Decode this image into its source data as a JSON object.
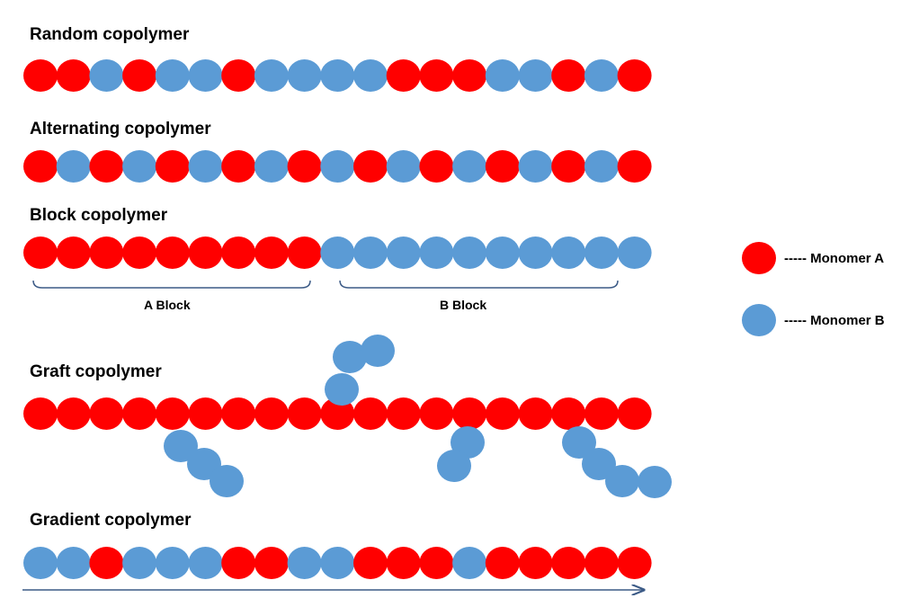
{
  "colors": {
    "monomer_a": "#ff0000",
    "monomer_b": "#5b9bd5",
    "bracket": "#3b5a86",
    "arrow": "#3b5a86"
  },
  "titles": {
    "random": "Random copolymer",
    "alternating": "Alternating copolymer",
    "block": "Block copolymer",
    "graft": "Graft copolymer",
    "gradient": "Gradient copolymer"
  },
  "block_labels": {
    "a": "A Block",
    "b": "B Block"
  },
  "legend": {
    "a": "----- Monomer A",
    "b": "----- Monomer B"
  },
  "chains": {
    "random": [
      "A",
      "A",
      "B",
      "A",
      "B",
      "B",
      "A",
      "B",
      "B",
      "B",
      "B",
      "A",
      "A",
      "A",
      "B",
      "B",
      "A",
      "B",
      "A"
    ],
    "alternating": [
      "A",
      "B",
      "A",
      "B",
      "A",
      "B",
      "A",
      "B",
      "A",
      "B",
      "A",
      "B",
      "A",
      "B",
      "A",
      "B",
      "A",
      "B",
      "A"
    ],
    "block": [
      "A",
      "A",
      "A",
      "A",
      "A",
      "A",
      "A",
      "A",
      "A",
      "B",
      "B",
      "B",
      "B",
      "B",
      "B",
      "B",
      "B",
      "B",
      "B"
    ],
    "graft": [
      "A",
      "A",
      "A",
      "A",
      "A",
      "A",
      "A",
      "A",
      "A",
      "A",
      "A",
      "A",
      "A",
      "A",
      "A",
      "A",
      "A",
      "A",
      "A"
    ],
    "gradient": [
      "B",
      "B",
      "A",
      "B",
      "B",
      "B",
      "A",
      "A",
      "B",
      "B",
      "A",
      "A",
      "A",
      "B",
      "A",
      "A",
      "A",
      "A",
      "A"
    ]
  }
}
